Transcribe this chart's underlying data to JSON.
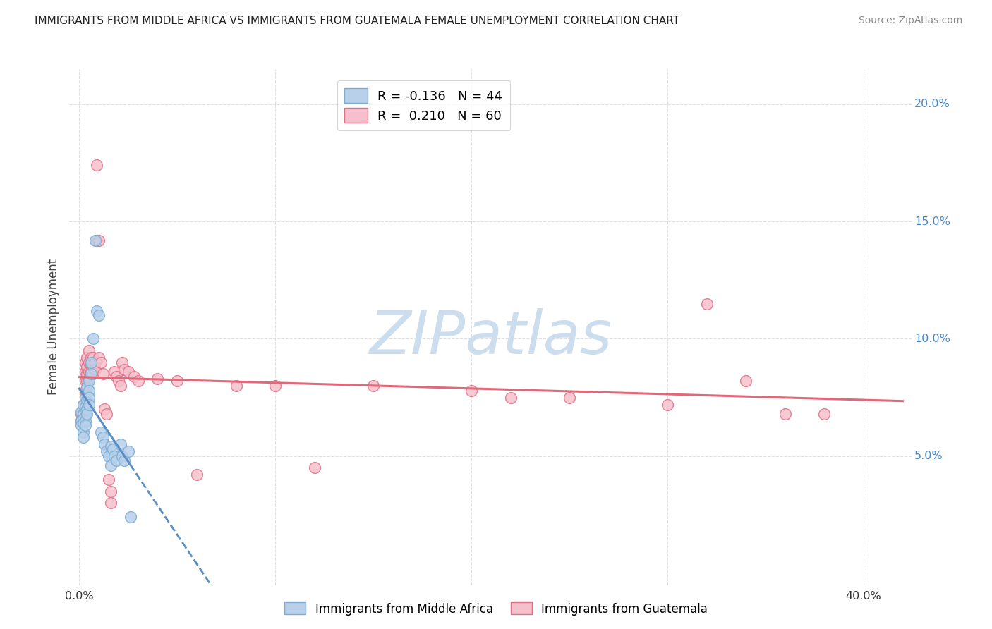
{
  "title": "IMMIGRANTS FROM MIDDLE AFRICA VS IMMIGRANTS FROM GUATEMALA FEMALE UNEMPLOYMENT CORRELATION CHART",
  "source": "Source: ZipAtlas.com",
  "ylabel": "Female Unemployment",
  "y_tick_positions": [
    0.05,
    0.1,
    0.15,
    0.2
  ],
  "y_tick_labels": [
    "5.0%",
    "10.0%",
    "15.0%",
    "20.0%"
  ],
  "x_tick_positions": [
    0.0,
    0.1,
    0.2,
    0.3,
    0.4
  ],
  "xlim": [
    -0.005,
    0.425
  ],
  "ylim": [
    -0.005,
    0.215
  ],
  "series1_color": "#b8d0ea",
  "series1_edge": "#7aadd4",
  "series1_line_color": "#5b8ec4",
  "series2_color": "#f5c0cc",
  "series2_edge": "#e07088",
  "series2_line_color": "#e06878",
  "watermark_text": "ZIPatlas",
  "watermark_color": "#ccdded",
  "background_color": "#ffffff",
  "grid_color": "#e0e0e0",
  "title_color": "#222222",
  "right_axis_color": "#4488cc",
  "bottom_label_color": "#333333",
  "series1_label": "R = -0.136   N = 44",
  "series2_label": "R =  0.210   N = 60",
  "legend_label1": "Immigrants from Middle Africa",
  "legend_label2": "Immigrants from Guatemala",
  "series1_scatter": [
    [
      0.001,
      0.069
    ],
    [
      0.001,
      0.065
    ],
    [
      0.001,
      0.063
    ],
    [
      0.002,
      0.072
    ],
    [
      0.002,
      0.068
    ],
    [
      0.002,
      0.066
    ],
    [
      0.002,
      0.064
    ],
    [
      0.002,
      0.06
    ],
    [
      0.002,
      0.058
    ],
    [
      0.003,
      0.075
    ],
    [
      0.003,
      0.071
    ],
    [
      0.003,
      0.069
    ],
    [
      0.003,
      0.067
    ],
    [
      0.003,
      0.065
    ],
    [
      0.003,
      0.063
    ],
    [
      0.004,
      0.079
    ],
    [
      0.004,
      0.074
    ],
    [
      0.004,
      0.07
    ],
    [
      0.004,
      0.068
    ],
    [
      0.005,
      0.082
    ],
    [
      0.005,
      0.078
    ],
    [
      0.005,
      0.075
    ],
    [
      0.005,
      0.072
    ],
    [
      0.006,
      0.09
    ],
    [
      0.006,
      0.085
    ],
    [
      0.007,
      0.1
    ],
    [
      0.008,
      0.142
    ],
    [
      0.009,
      0.112
    ],
    [
      0.01,
      0.11
    ],
    [
      0.011,
      0.06
    ],
    [
      0.012,
      0.058
    ],
    [
      0.013,
      0.055
    ],
    [
      0.014,
      0.052
    ],
    [
      0.015,
      0.05
    ],
    [
      0.016,
      0.054
    ],
    [
      0.016,
      0.046
    ],
    [
      0.017,
      0.053
    ],
    [
      0.018,
      0.05
    ],
    [
      0.019,
      0.048
    ],
    [
      0.021,
      0.055
    ],
    [
      0.022,
      0.05
    ],
    [
      0.023,
      0.048
    ],
    [
      0.025,
      0.052
    ],
    [
      0.026,
      0.024
    ]
  ],
  "series2_scatter": [
    [
      0.001,
      0.068
    ],
    [
      0.001,
      0.065
    ],
    [
      0.002,
      0.072
    ],
    [
      0.002,
      0.068
    ],
    [
      0.002,
      0.065
    ],
    [
      0.003,
      0.09
    ],
    [
      0.003,
      0.086
    ],
    [
      0.003,
      0.082
    ],
    [
      0.003,
      0.078
    ],
    [
      0.004,
      0.092
    ],
    [
      0.004,
      0.088
    ],
    [
      0.004,
      0.085
    ],
    [
      0.004,
      0.082
    ],
    [
      0.005,
      0.095
    ],
    [
      0.005,
      0.09
    ],
    [
      0.005,
      0.086
    ],
    [
      0.005,
      0.083
    ],
    [
      0.006,
      0.092
    ],
    [
      0.006,
      0.089
    ],
    [
      0.006,
      0.086
    ],
    [
      0.007,
      0.092
    ],
    [
      0.007,
      0.088
    ],
    [
      0.007,
      0.085
    ],
    [
      0.008,
      0.09
    ],
    [
      0.008,
      0.087
    ],
    [
      0.009,
      0.174
    ],
    [
      0.009,
      0.142
    ],
    [
      0.01,
      0.142
    ],
    [
      0.01,
      0.092
    ],
    [
      0.011,
      0.09
    ],
    [
      0.012,
      0.085
    ],
    [
      0.013,
      0.07
    ],
    [
      0.014,
      0.068
    ],
    [
      0.015,
      0.04
    ],
    [
      0.016,
      0.035
    ],
    [
      0.016,
      0.03
    ],
    [
      0.018,
      0.086
    ],
    [
      0.019,
      0.084
    ],
    [
      0.02,
      0.082
    ],
    [
      0.021,
      0.08
    ],
    [
      0.022,
      0.09
    ],
    [
      0.023,
      0.087
    ],
    [
      0.025,
      0.086
    ],
    [
      0.028,
      0.084
    ],
    [
      0.03,
      0.082
    ],
    [
      0.04,
      0.083
    ],
    [
      0.05,
      0.082
    ],
    [
      0.06,
      0.042
    ],
    [
      0.08,
      0.08
    ],
    [
      0.1,
      0.08
    ],
    [
      0.12,
      0.045
    ],
    [
      0.15,
      0.08
    ],
    [
      0.2,
      0.078
    ],
    [
      0.22,
      0.075
    ],
    [
      0.25,
      0.075
    ],
    [
      0.3,
      0.072
    ],
    [
      0.32,
      0.115
    ],
    [
      0.34,
      0.082
    ],
    [
      0.36,
      0.068
    ],
    [
      0.38,
      0.068
    ]
  ],
  "series1_trend_xmax_solid": 0.026,
  "series1_trend_xmax_dashed": 0.42,
  "series2_trend_xmax": 0.42
}
